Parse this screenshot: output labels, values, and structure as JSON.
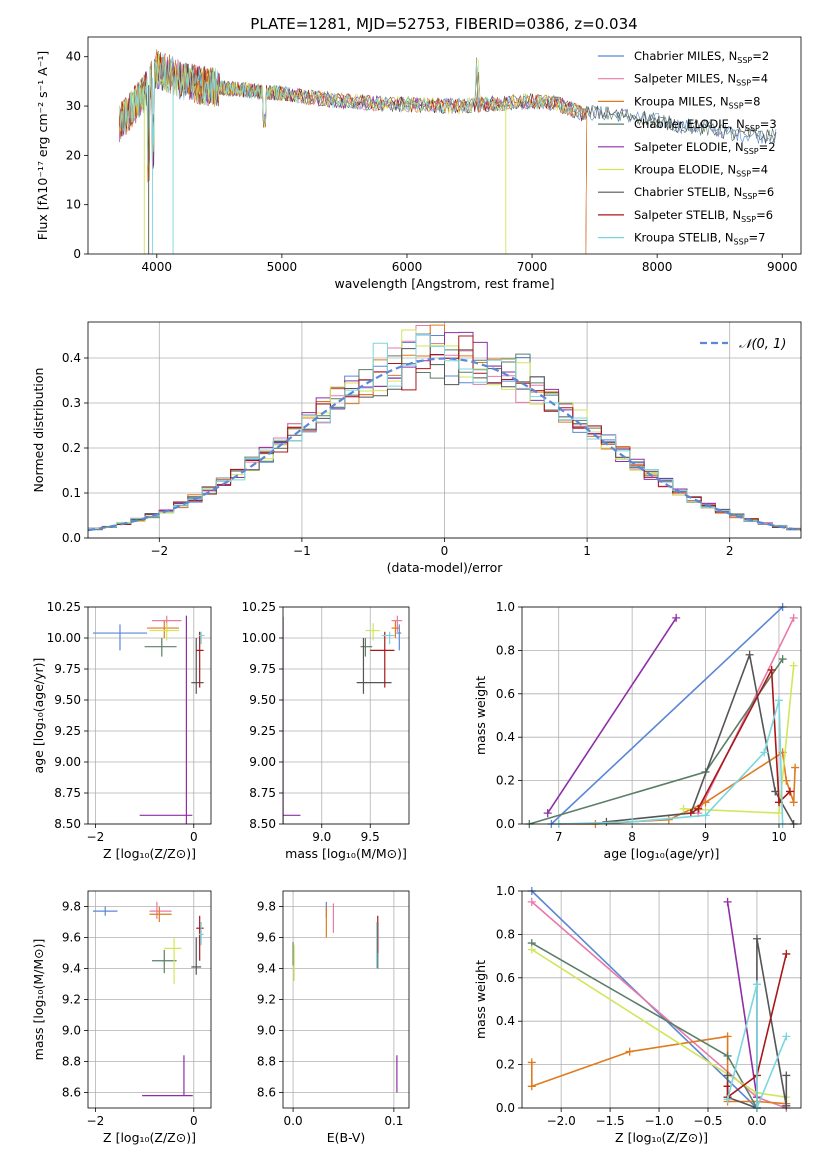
{
  "title": "PLATE=1281, MJD=52753, FIBERID=0386, z=0.034",
  "models": [
    {
      "label": "Chabrier MILES, N",
      "sub": "SSP",
      "n": "=2",
      "color": "#5b87d6"
    },
    {
      "label": "Salpeter MILES, N",
      "sub": "SSP",
      "n": "=4",
      "color": "#e87aa8"
    },
    {
      "label": "Kroupa MILES, N",
      "sub": "SSP",
      "n": "=8",
      "color": "#e07a1f"
    },
    {
      "label": "Chabrier ELODIE, N",
      "sub": "SSP",
      "n": "=3",
      "color": "#5a7f66"
    },
    {
      "label": "Salpeter ELODIE, N",
      "sub": "SSP",
      "n": "=2",
      "color": "#8e2fa6"
    },
    {
      "label": "Kroupa ELODIE, N",
      "sub": "SSP",
      "n": "=4",
      "color": "#d2e65a"
    },
    {
      "label": "Chabrier STELIB, N",
      "sub": "SSP",
      "n": "=6",
      "color": "#555555"
    },
    {
      "label": "Salpeter STELIB, N",
      "sub": "SSP",
      "n": "=6",
      "color": "#a81818"
    },
    {
      "label": "Kroupa STELIB, N",
      "sub": "SSP",
      "n": "=7",
      "color": "#7bd6de"
    }
  ],
  "chart_data": [
    {
      "id": "spectrum",
      "type": "line",
      "xlabel": "wavelength [Angstrom, rest frame]",
      "ylabel": "Flux [fλ10⁻¹⁷ erg cm⁻² s⁻¹ A⁻¹]",
      "xlim": [
        3450,
        9150
      ],
      "ylim": [
        0,
        44
      ],
      "xticks": [
        4000,
        5000,
        6000,
        7000,
        8000,
        9000
      ],
      "yticks": [
        0,
        10,
        20,
        30,
        40
      ],
      "continuum": {
        "x": [
          3700,
          3800,
          3900,
          4000,
          4100,
          4200,
          4400,
          4600,
          4800,
          5000,
          5200,
          5500,
          5800,
          6100,
          6400,
          6700,
          7000,
          7200,
          7400,
          7600,
          7800,
          8000,
          8200,
          8400,
          8600,
          8800,
          8950
        ],
        "y": [
          26.5,
          29.5,
          32.5,
          37.5,
          36.5,
          35,
          34,
          33.5,
          33,
          32.5,
          31.8,
          31,
          30.5,
          30.2,
          30,
          30.5,
          31,
          30.5,
          28.5,
          28.5,
          28,
          27,
          26,
          25.5,
          24.5,
          24,
          23.8
        ]
      },
      "grid": false,
      "legend": "top-right"
    },
    {
      "id": "residuals",
      "type": "histogram",
      "xlabel": "(data-model)/error",
      "ylabel": "Normed distribution",
      "xlim": [
        -2.5,
        2.5
      ],
      "ylim": [
        0,
        0.48
      ],
      "xticks": [
        -2,
        -1,
        0,
        1,
        2
      ],
      "yticks": [
        0,
        0.1,
        0.2,
        0.3,
        0.4
      ],
      "bin_width": 0.1,
      "reference": {
        "label": "𝒩(0, 1)",
        "type": "gaussian",
        "mean": 0,
        "sigma": 1,
        "color": "#5b87d6"
      },
      "grid": true,
      "legend": "top-right"
    },
    {
      "id": "age-vs-z",
      "type": "errorbar",
      "xlabel": "Z [log₁₀(Z/Z⊙)]",
      "ylabel": "age  [log₁₀(age/yr)]",
      "xlim": [
        -2.15,
        0.35
      ],
      "ylim": [
        8.5,
        10.25
      ],
      "xticks": [
        -2,
        0
      ],
      "yticks": [
        8.5,
        8.75,
        9.0,
        9.25,
        9.5,
        9.75,
        10.0,
        10.25
      ],
      "points": [
        {
          "m": 0,
          "x": -1.5,
          "xl": -2.05,
          "xh": -0.95,
          "y": 10.04,
          "yl": 9.9,
          "yh": 10.11
        },
        {
          "m": 1,
          "x": -0.55,
          "xl": -0.85,
          "xh": -0.25,
          "y": 10.14,
          "yl": 10.05,
          "yh": 10.18
        },
        {
          "m": 2,
          "x": -0.6,
          "xl": -0.95,
          "xh": -0.3,
          "y": 10.08,
          "yl": 10.0,
          "yh": 10.14
        },
        {
          "m": 3,
          "x": -0.65,
          "xl": -1.0,
          "xh": -0.35,
          "y": 9.93,
          "yl": 9.85,
          "yh": 10.0
        },
        {
          "m": 4,
          "x": -0.15,
          "xl": -1.1,
          "xh": -0.03,
          "y": 8.57,
          "yl": 8.5,
          "yh": 10.18
        },
        {
          "m": 5,
          "x": -0.55,
          "xl": -0.9,
          "xh": -0.3,
          "y": 10.06,
          "yl": 9.98,
          "yh": 10.12
        },
        {
          "m": 6,
          "x": 0.05,
          "xl": -0.05,
          "xh": 0.2,
          "y": 9.64,
          "yl": 9.55,
          "yh": 10.0
        },
        {
          "m": 7,
          "x": 0.12,
          "xl": 0.05,
          "xh": 0.2,
          "y": 9.9,
          "yl": 9.6,
          "yh": 10.05
        },
        {
          "m": 8,
          "x": 0.15,
          "xl": 0.1,
          "xh": 0.22,
          "y": 10.02,
          "yl": 9.95,
          "yh": 10.05
        }
      ],
      "grid": true
    },
    {
      "id": "age-vs-mass",
      "type": "errorbar",
      "xlabel": "mass [log₁₀(M/M⊙)]",
      "ylabel": "",
      "xlim": [
        8.6,
        9.9
      ],
      "ylim": [
        8.5,
        10.25
      ],
      "xticks": [
        9.0,
        9.5
      ],
      "yticks": [
        8.5,
        8.75,
        9.0,
        9.25,
        9.5,
        9.75,
        10.0,
        10.25
      ],
      "points": [
        {
          "m": 0,
          "x": 9.8,
          "xl": 9.77,
          "xh": 9.82,
          "y": 10.04,
          "yl": 9.9,
          "yh": 10.11
        },
        {
          "m": 1,
          "x": 9.78,
          "xl": 9.72,
          "xh": 9.83,
          "y": 10.14,
          "yl": 10.05,
          "yh": 10.18
        },
        {
          "m": 2,
          "x": 9.76,
          "xl": 9.72,
          "xh": 9.8,
          "y": 10.08,
          "yl": 10.0,
          "yh": 10.14
        },
        {
          "m": 3,
          "x": 9.45,
          "xl": 9.4,
          "xh": 9.52,
          "y": 9.93,
          "yl": 9.85,
          "yh": 10.0
        },
        {
          "m": 4,
          "x": 8.6,
          "xl": 8.6,
          "xh": 8.78,
          "y": 8.57,
          "yl": 8.5,
          "yh": 10.17
        },
        {
          "m": 5,
          "x": 9.53,
          "xl": 9.45,
          "xh": 9.6,
          "y": 10.06,
          "yl": 9.98,
          "yh": 10.12
        },
        {
          "m": 6,
          "x": 9.43,
          "xl": 9.36,
          "xh": 9.72,
          "y": 9.64,
          "yl": 9.55,
          "yh": 10.0
        },
        {
          "m": 7,
          "x": 9.65,
          "xl": 9.5,
          "xh": 9.75,
          "y": 9.9,
          "yl": 9.6,
          "yh": 10.05
        },
        {
          "m": 8,
          "x": 9.7,
          "xl": 9.62,
          "xh": 9.75,
          "y": 10.02,
          "yl": 9.95,
          "yh": 10.05
        }
      ],
      "grid": true
    },
    {
      "id": "weight-vs-age",
      "type": "line",
      "xlabel": "age  [log₁₀(age/yr)]",
      "ylabel": "mass weight",
      "xlim": [
        6.5,
        10.3
      ],
      "ylim": [
        0,
        1.0
      ],
      "xticks": [
        7,
        8,
        9,
        10
      ],
      "yticks": [
        0,
        0.2,
        0.4,
        0.6,
        0.8,
        1.0
      ],
      "series": [
        {
          "m": 0,
          "x": [
            6.9,
            10.05
          ],
          "y": [
            0.0,
            1.0
          ]
        },
        {
          "m": 1,
          "x": [
            8.9,
            10.2
          ],
          "y": [
            0.05,
            0.95
          ]
        },
        {
          "m": 2,
          "x": [
            7.0,
            7.5,
            8.0,
            8.5,
            9.0,
            10.05,
            10.1,
            10.2,
            10.22
          ],
          "y": [
            0.0,
            0.0,
            0.01,
            0.02,
            0.1,
            0.33,
            0.2,
            0.1,
            0.26
          ]
        },
        {
          "m": 3,
          "x": [
            6.6,
            9.0,
            10.05
          ],
          "y": [
            0.0,
            0.24,
            0.76
          ]
        },
        {
          "m": 4,
          "x": [
            6.85,
            8.6
          ],
          "y": [
            0.05,
            0.95
          ]
        },
        {
          "m": 5,
          "x": [
            8.7,
            10.0,
            10.2
          ],
          "y": [
            0.07,
            0.05,
            0.73
          ]
        },
        {
          "m": 6,
          "x": [
            7.65,
            8.8,
            9.6,
            9.95,
            10.2
          ],
          "y": [
            0.01,
            0.05,
            0.78,
            0.15,
            0.0
          ]
        },
        {
          "m": 7,
          "x": [
            8.8,
            8.9,
            9.9,
            10.0,
            10.15
          ],
          "y": [
            0.05,
            0.07,
            0.71,
            0.1,
            0.15
          ]
        },
        {
          "m": 8,
          "x": [
            7.0,
            8.0,
            9.0,
            9.8,
            10.0,
            10.05
          ],
          "y": [
            0.0,
            0.01,
            0.04,
            0.33,
            0.57,
            0.0
          ]
        }
      ],
      "grid": true
    },
    {
      "id": "mass-vs-z",
      "type": "errorbar",
      "xlabel": "Z [log₁₀(Z/Z⊙)]",
      "ylabel": "mass [log₁₀(M/M⊙)]",
      "xlim": [
        -2.15,
        0.35
      ],
      "ylim": [
        8.5,
        9.9
      ],
      "xticks": [
        -2,
        0
      ],
      "yticks": [
        8.6,
        8.8,
        9.0,
        9.2,
        9.4,
        9.6,
        9.8
      ],
      "points": [
        {
          "m": 0,
          "x": -1.8,
          "xl": -2.05,
          "xh": -1.55,
          "y": 9.77,
          "yl": 9.74,
          "yh": 9.8
        },
        {
          "m": 1,
          "x": -0.75,
          "xl": -0.9,
          "xh": -0.45,
          "y": 9.77,
          "yl": 9.72,
          "yh": 9.83
        },
        {
          "m": 2,
          "x": -0.7,
          "xl": -0.9,
          "xh": -0.45,
          "y": 9.75,
          "yl": 9.7,
          "yh": 9.8
        },
        {
          "m": 3,
          "x": -0.6,
          "xl": -0.85,
          "xh": -0.35,
          "y": 9.45,
          "yl": 9.37,
          "yh": 9.52
        },
        {
          "m": 4,
          "x": -0.2,
          "xl": -1.05,
          "xh": -0.02,
          "y": 8.58,
          "yl": 8.58,
          "yh": 8.84
        },
        {
          "m": 5,
          "x": -0.4,
          "xl": -0.6,
          "xh": -0.25,
          "y": 9.53,
          "yl": 9.3,
          "yh": 9.6
        },
        {
          "m": 6,
          "x": 0.05,
          "xl": -0.05,
          "xh": 0.15,
          "y": 9.41,
          "yl": 9.36,
          "yh": 9.6
        },
        {
          "m": 7,
          "x": 0.12,
          "xl": 0.05,
          "xh": 0.2,
          "y": 9.66,
          "yl": 9.45,
          "yh": 9.74
        },
        {
          "m": 8,
          "x": 0.15,
          "xl": 0.1,
          "xh": 0.2,
          "y": 9.62,
          "yl": 9.55,
          "yh": 9.7
        }
      ],
      "grid": true
    },
    {
      "id": "mass-vs-ebv",
      "type": "errorbar",
      "xlabel": "E(B-V)",
      "ylabel": "",
      "xlim": [
        -0.01,
        0.115
      ],
      "ylim": [
        8.5,
        9.9
      ],
      "xticks": [
        0.0,
        0.1
      ],
      "yticks": [
        8.6,
        8.8,
        9.0,
        9.2,
        9.4,
        9.6,
        9.8
      ],
      "points": [
        {
          "m": 0,
          "x": 0.033,
          "xl": 0.033,
          "xh": 0.033,
          "y": 9.77,
          "yl": 9.73,
          "yh": 9.83
        },
        {
          "m": 1,
          "x": 0.04,
          "xl": 0.04,
          "xh": 0.04,
          "y": 9.77,
          "yl": 9.63,
          "yh": 9.82
        },
        {
          "m": 2,
          "x": 0.033,
          "xl": 0.033,
          "xh": 0.033,
          "y": 9.7,
          "yl": 9.6,
          "yh": 9.8
        },
        {
          "m": 3,
          "x": 0.0,
          "xl": 0.0,
          "xh": 0.0,
          "y": 9.5,
          "yl": 9.42,
          "yh": 9.57
        },
        {
          "m": 4,
          "x": 0.103,
          "xl": 0.103,
          "xh": 0.103,
          "y": 8.7,
          "yl": 8.6,
          "yh": 8.84
        },
        {
          "m": 5,
          "x": 0.001,
          "xl": 0.001,
          "xh": 0.001,
          "y": 9.4,
          "yl": 9.32,
          "yh": 9.55
        },
        {
          "m": 6,
          "x": 0.084,
          "xl": 0.084,
          "xh": 0.084,
          "y": 9.6,
          "yl": 9.4,
          "yh": 9.7
        },
        {
          "m": 7,
          "x": 0.084,
          "xl": 0.084,
          "xh": 0.084,
          "y": 9.6,
          "yl": 9.5,
          "yh": 9.74
        },
        {
          "m": 8,
          "x": 0.083,
          "xl": 0.083,
          "xh": 0.083,
          "y": 9.55,
          "yl": 9.4,
          "yh": 9.7
        }
      ],
      "grid": true
    },
    {
      "id": "weight-vs-z",
      "type": "line",
      "xlabel": "Z [log₁₀(Z/Z⊙)]",
      "ylabel": "mass weight",
      "xlim": [
        -2.4,
        0.45
      ],
      "ylim": [
        0,
        1.0
      ],
      "xticks": [
        -2.0,
        -1.5,
        -1.0,
        -0.5,
        0.0
      ],
      "yticks": [
        0,
        0.2,
        0.4,
        0.6,
        0.8,
        1.0
      ],
      "series": [
        {
          "m": 0,
          "x": [
            -2.3,
            0.0
          ],
          "y": [
            1.0,
            0.0
          ]
        },
        {
          "m": 1,
          "x": [
            -2.3,
            0.0,
            0.3
          ],
          "y": [
            0.95,
            0.05,
            0.0
          ]
        },
        {
          "m": 2,
          "x": [
            -2.3,
            -2.3,
            -1.3,
            -0.3,
            -0.3,
            -0.3,
            0.0,
            0.3
          ],
          "y": [
            0.21,
            0.1,
            0.26,
            0.33,
            0.1,
            0.03,
            0.03,
            0.02
          ]
        },
        {
          "m": 3,
          "x": [
            -2.3,
            -0.3,
            0.0
          ],
          "y": [
            0.76,
            0.24,
            0.0
          ]
        },
        {
          "m": 4,
          "x": [
            -0.3,
            0.0
          ],
          "y": [
            0.95,
            0.05
          ]
        },
        {
          "m": 5,
          "x": [
            -2.3,
            0.0,
            0.3
          ],
          "y": [
            0.73,
            0.07,
            0.05
          ]
        },
        {
          "m": 6,
          "x": [
            -0.3,
            -0.3,
            0.0,
            0.0,
            0.3,
            0.3
          ],
          "y": [
            0.15,
            0.05,
            0.0,
            0.78,
            0.01,
            0.15
          ]
        },
        {
          "m": 7,
          "x": [
            -0.3,
            -0.3,
            0.0,
            0.3
          ],
          "y": [
            0.1,
            0.05,
            0.15,
            0.71
          ]
        },
        {
          "m": 8,
          "x": [
            -0.3,
            0.0,
            0.0,
            0.3
          ],
          "y": [
            0.04,
            0.57,
            0.0,
            0.33
          ]
        }
      ],
      "grid": true
    }
  ]
}
